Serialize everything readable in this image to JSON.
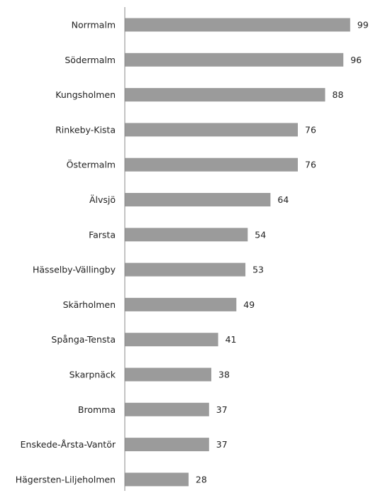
{
  "chart_data": {
    "type": "bar",
    "orientation": "horizontal",
    "categories": [
      "Norrmalm",
      "Södermalm",
      "Kungsholmen",
      "Rinkeby-Kista",
      "Östermalm",
      "Älvsjö",
      "Farsta",
      "Hässelby-Vällingby",
      "Skärholmen",
      "Spånga-Tensta",
      "Skarpnäck",
      "Bromma",
      "Enskede-Årsta-Vantör",
      "Hägersten-Liljeholmen"
    ],
    "values": [
      99,
      96,
      88,
      76,
      76,
      64,
      54,
      53,
      49,
      41,
      38,
      37,
      37,
      28
    ],
    "xlim": [
      0,
      100
    ],
    "grid": false,
    "legend": "none"
  },
  "colors": {
    "bar": "#9b9b9b",
    "axis": "#888888",
    "text": "#222222",
    "background": "#ffffff"
  }
}
